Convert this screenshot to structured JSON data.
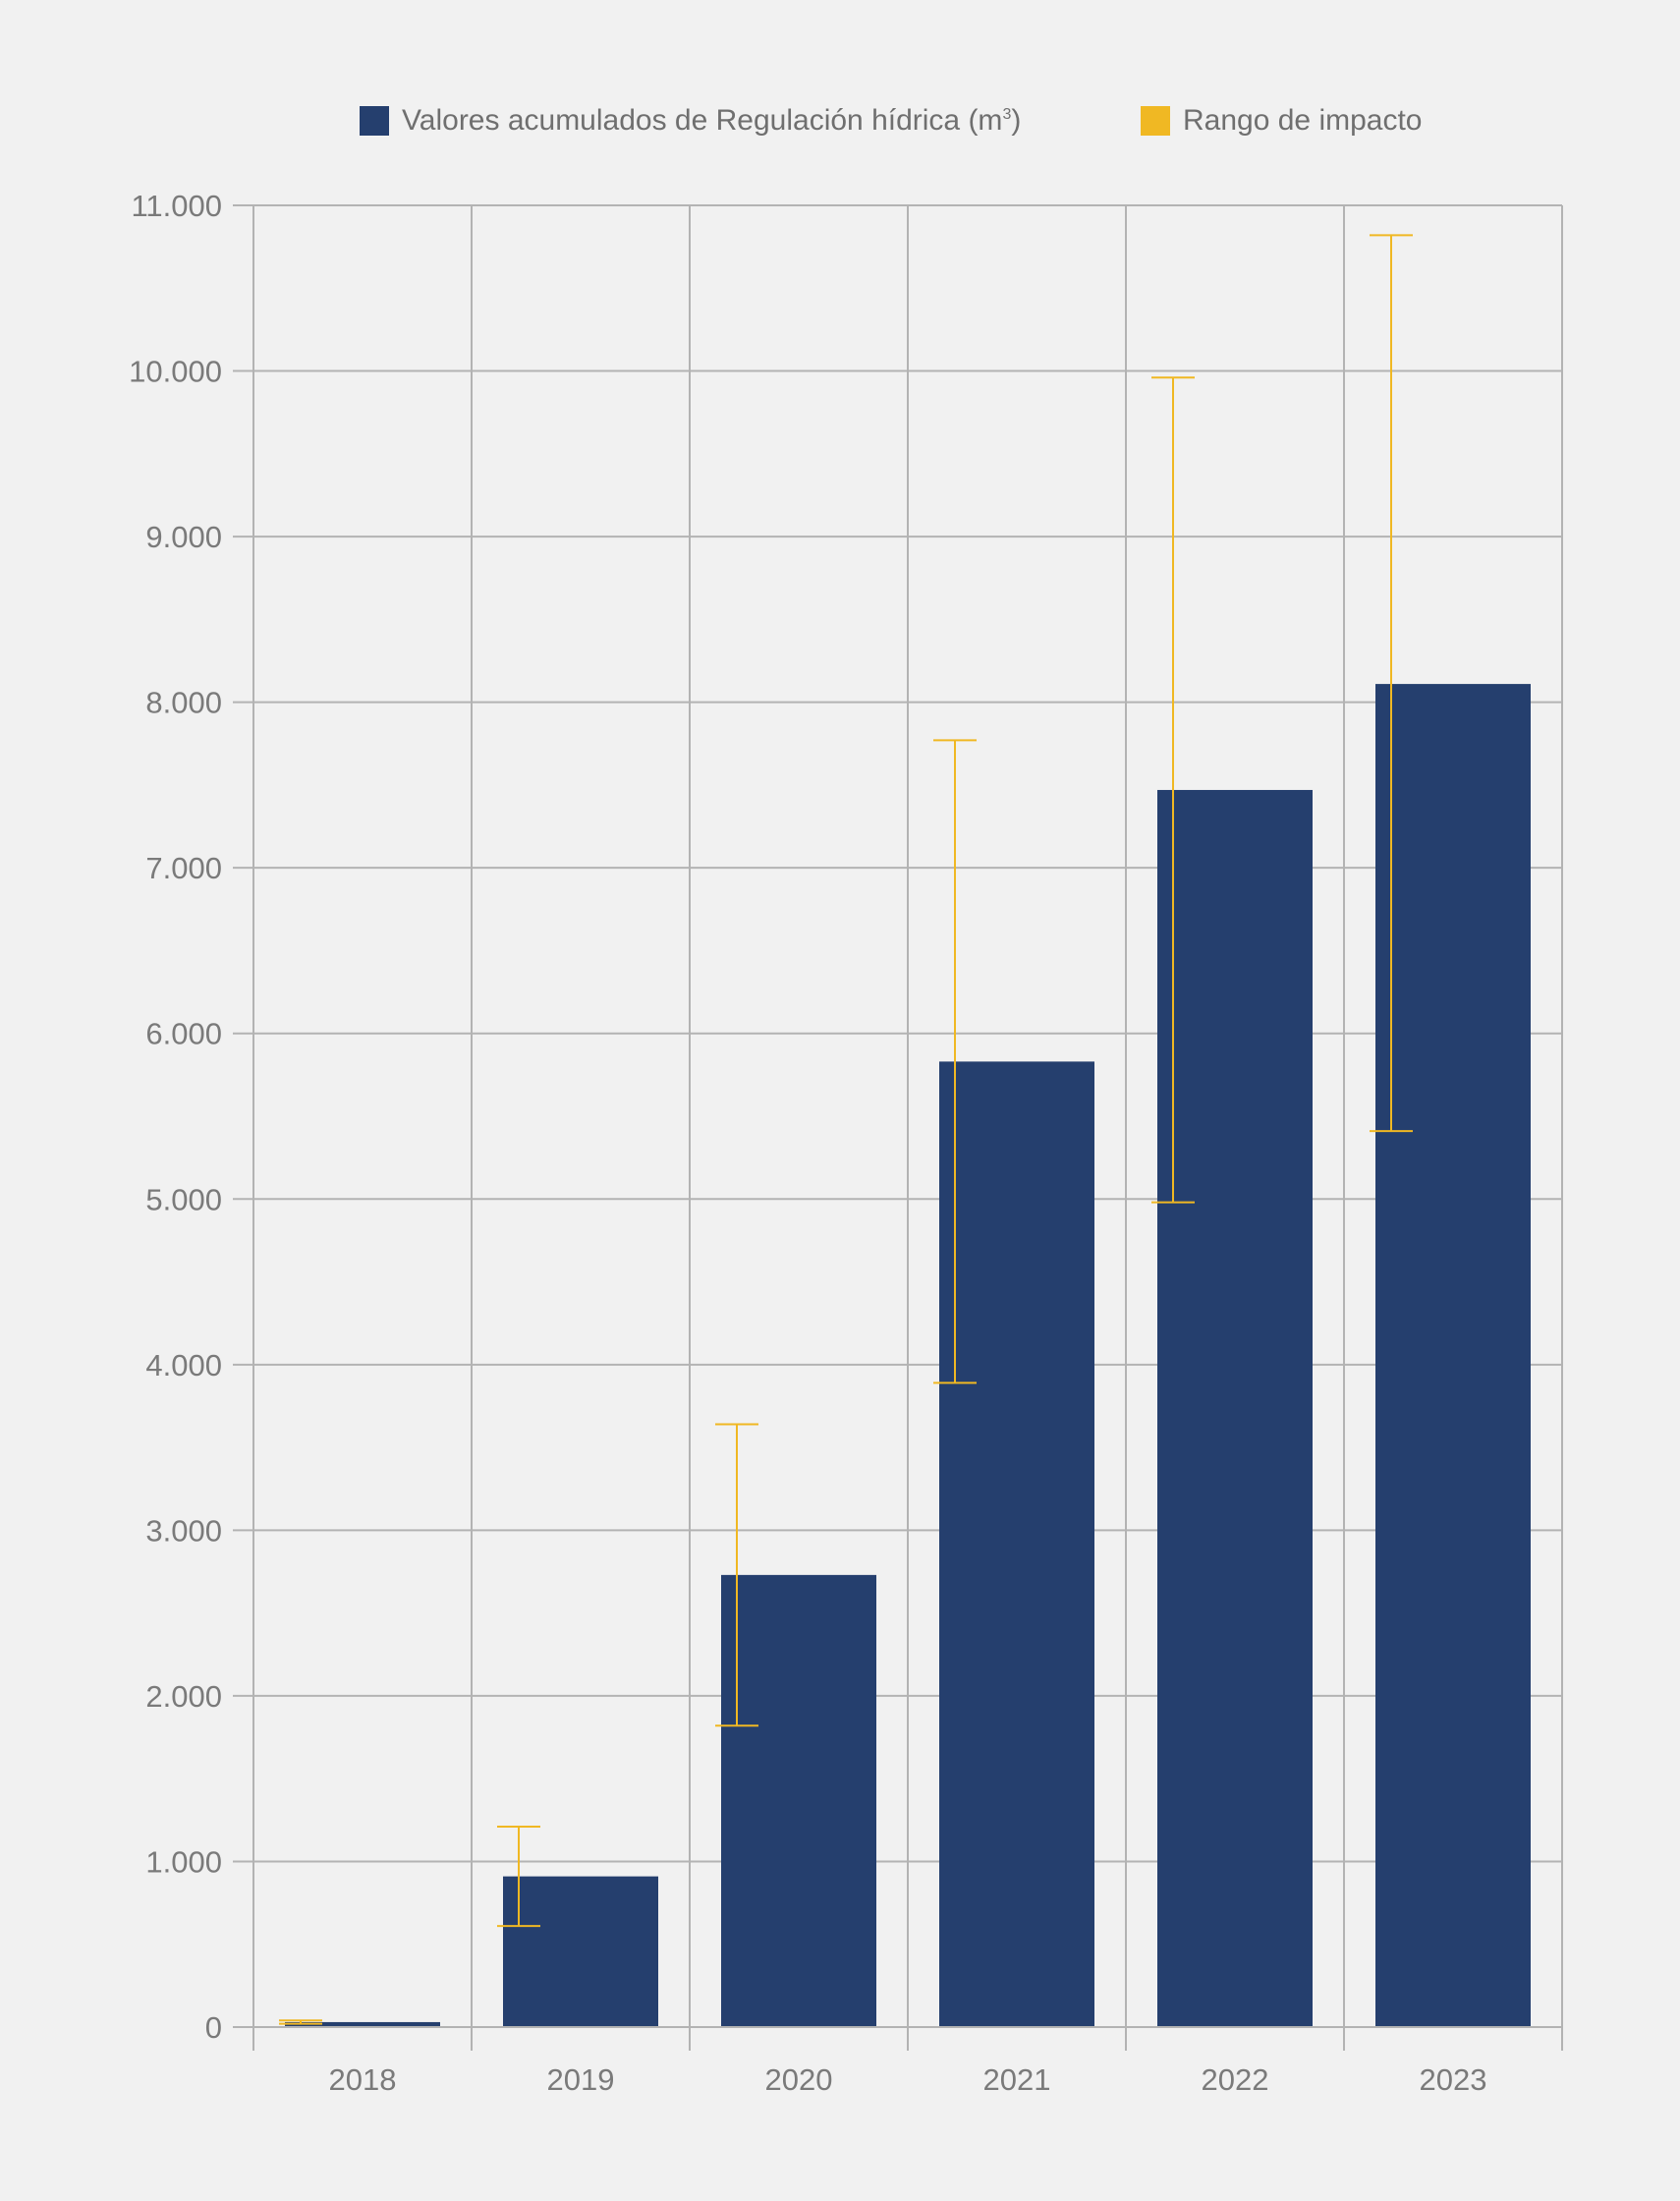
{
  "chart_data": {
    "type": "bar",
    "categories": [
      "2018",
      "2019",
      "2020",
      "2021",
      "2022",
      "2023"
    ],
    "series": [
      {
        "name": "Valores acumulados de Regulación hídrica (m³)",
        "values": [
          30,
          910,
          2730,
          5830,
          7470,
          8110
        ],
        "color": "#253f6e"
      }
    ],
    "error_ranges": {
      "name": "Rango de impacto",
      "color": "#f0b823",
      "low": [
        20,
        610,
        1820,
        3890,
        4980,
        5410
      ],
      "high": [
        40,
        1210,
        3640,
        7770,
        9960,
        10820
      ]
    },
    "legend": {
      "bar_label_base": "Valores acumulados de Regulación hídrica (m",
      "bar_label_sup": "3",
      "bar_label_end": ")",
      "range_label": "Rango de impacto"
    },
    "ylim": [
      0,
      11000
    ],
    "yticks": [
      0,
      1000,
      2000,
      3000,
      4000,
      5000,
      6000,
      7000,
      8000,
      9000,
      10000,
      11000
    ],
    "ytick_labels": [
      "0",
      "1.000",
      "2.000",
      "3.000",
      "4.000",
      "5.000",
      "6.000",
      "7.000",
      "8.000",
      "9.000",
      "10.000",
      "11.000"
    ],
    "grid": true,
    "legend_position": "top"
  }
}
